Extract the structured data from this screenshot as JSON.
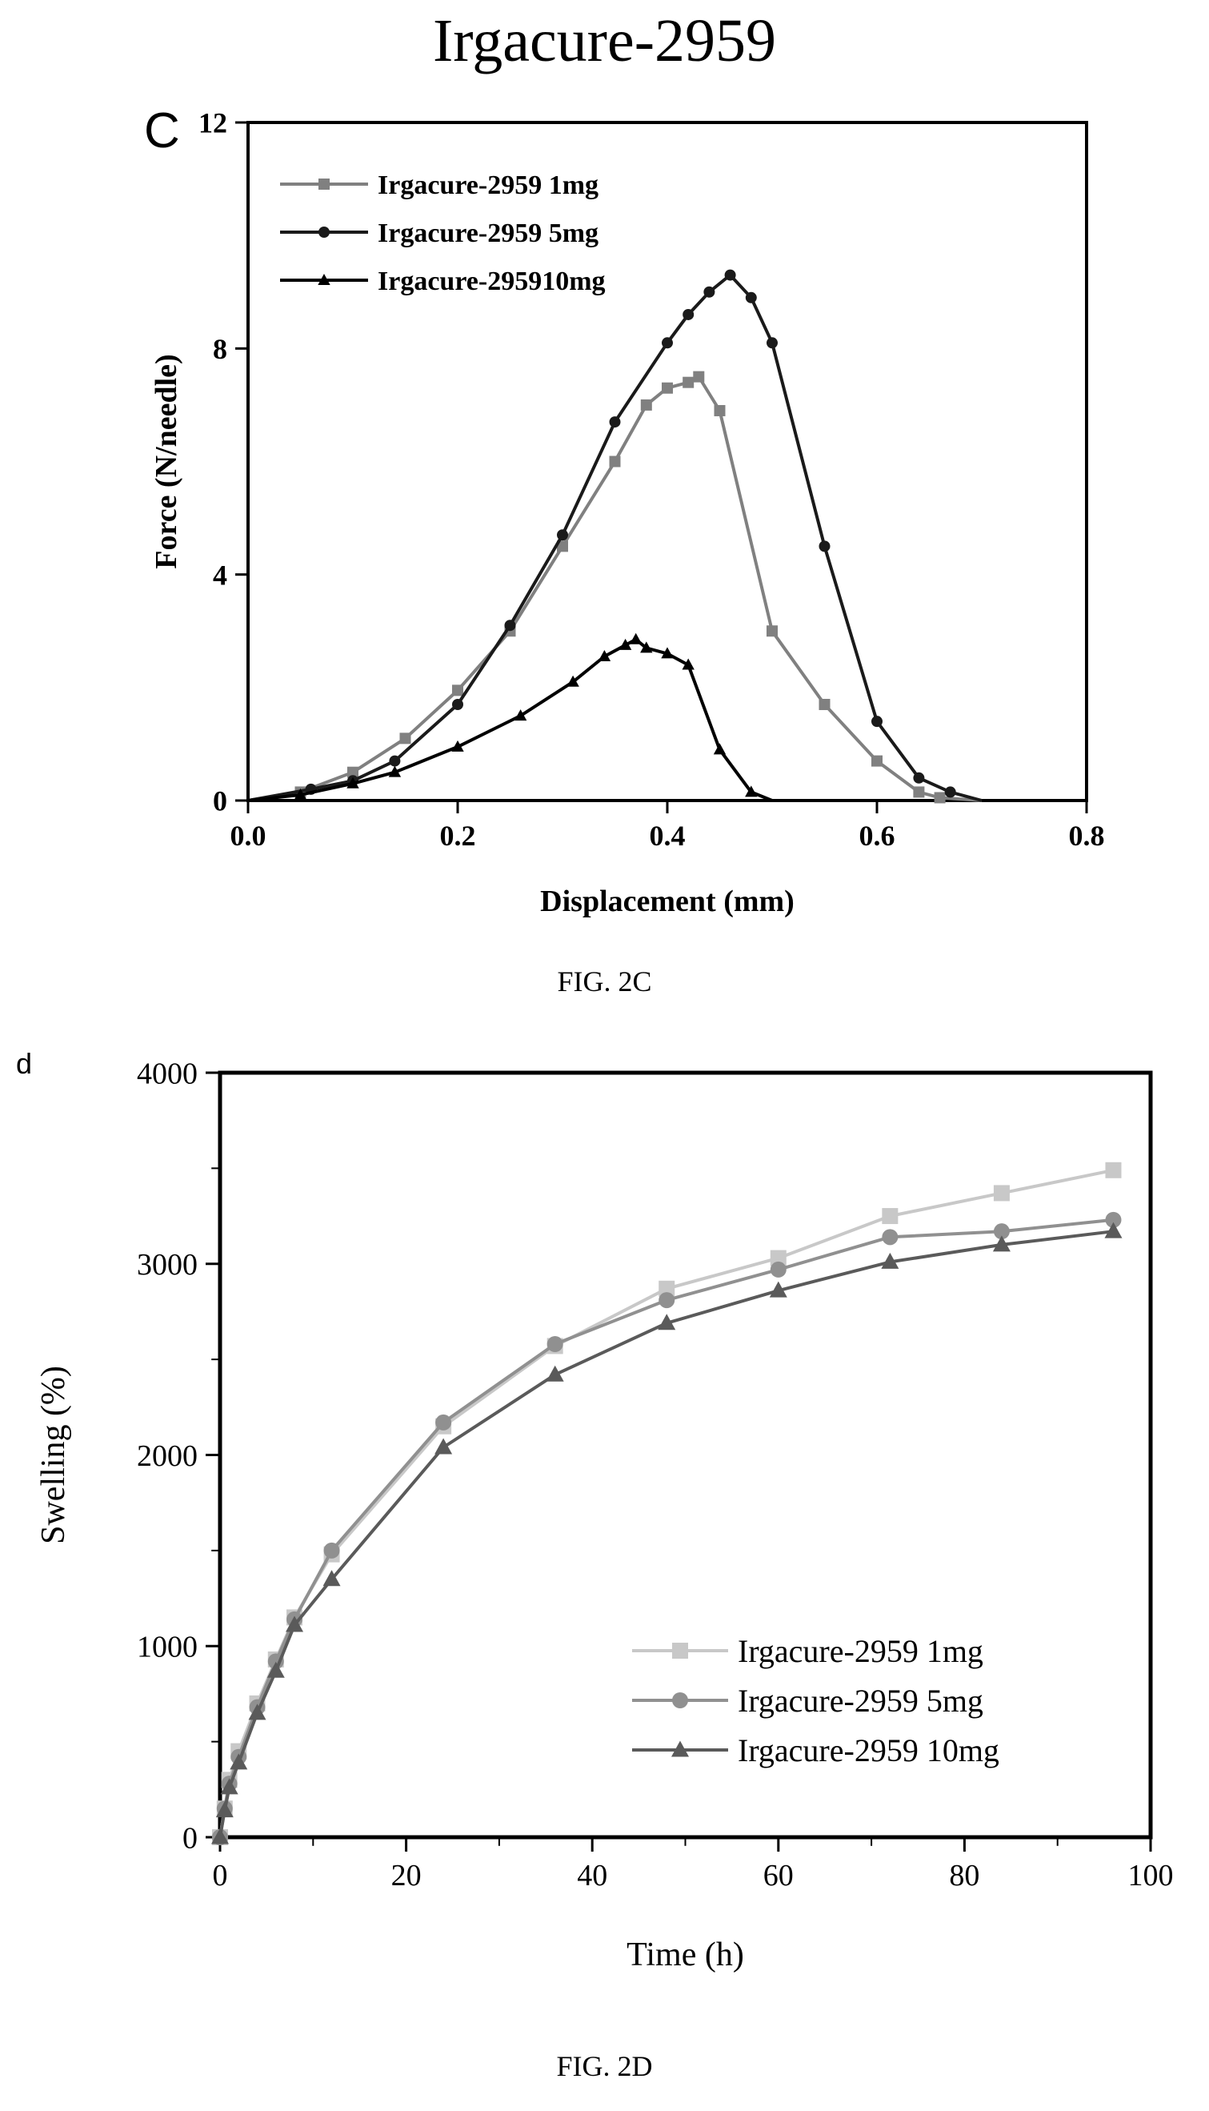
{
  "page_title": "Irgacure-2959",
  "colors": {
    "black": "#000000",
    "dark": "#1a1a1a",
    "mid": "#808080",
    "light": "#b0b0b0",
    "lighter": "#c8c8c8"
  },
  "chart_data": [
    {
      "type": "line",
      "panel_label": "C",
      "caption": "FIG. 2C",
      "xlabel": "Displacement (mm)",
      "ylabel": "Force (N/needle)",
      "xlim": [
        0,
        0.8
      ],
      "ylim": [
        0,
        12
      ],
      "xticks": [
        "0.0",
        "0.2",
        "0.4",
        "0.6",
        "0.8"
      ],
      "yticks": [
        "0",
        "4",
        "8",
        "12"
      ],
      "grid": false,
      "legend_position": "top-left",
      "series": [
        {
          "name": "Irgacure-2959 1mg",
          "marker": "square",
          "color": "#808080",
          "x": [
            0,
            0.05,
            0.1,
            0.15,
            0.2,
            0.25,
            0.3,
            0.35,
            0.38,
            0.4,
            0.42,
            0.43,
            0.45,
            0.5,
            0.55,
            0.6,
            0.64,
            0.66,
            0.7
          ],
          "y": [
            0,
            0.15,
            0.5,
            1.1,
            1.95,
            3.0,
            4.5,
            6.0,
            7.0,
            7.3,
            7.4,
            7.5,
            6.9,
            3.0,
            1.7,
            0.7,
            0.15,
            0.05,
            0
          ]
        },
        {
          "name": "Irgacure-2959 5mg",
          "marker": "circle",
          "color": "#1a1a1a",
          "x": [
            0,
            0.06,
            0.1,
            0.14,
            0.2,
            0.25,
            0.3,
            0.35,
            0.4,
            0.42,
            0.44,
            0.46,
            0.48,
            0.5,
            0.55,
            0.6,
            0.64,
            0.67,
            0.7
          ],
          "y": [
            0,
            0.2,
            0.35,
            0.7,
            1.7,
            3.1,
            4.7,
            6.7,
            8.1,
            8.6,
            9.0,
            9.3,
            8.9,
            8.1,
            4.5,
            1.4,
            0.4,
            0.15,
            0
          ]
        },
        {
          "name": "Irgacure-295910mg",
          "marker": "triangle",
          "color": "#000000",
          "x": [
            0,
            0.05,
            0.1,
            0.14,
            0.2,
            0.26,
            0.31,
            0.34,
            0.36,
            0.37,
            0.38,
            0.4,
            0.42,
            0.45,
            0.48,
            0.5
          ],
          "y": [
            0,
            0.1,
            0.3,
            0.5,
            0.95,
            1.5,
            2.1,
            2.55,
            2.75,
            2.85,
            2.7,
            2.6,
            2.4,
            0.9,
            0.15,
            0
          ]
        }
      ]
    },
    {
      "type": "line",
      "panel_label": "d",
      "caption": "FIG. 2D",
      "xlabel": "Time (h)",
      "ylabel": "Swelling (%)",
      "xlim": [
        0,
        100
      ],
      "ylim": [
        0,
        4000
      ],
      "xticks": [
        "0",
        "20",
        "40",
        "60",
        "80",
        "100"
      ],
      "yticks": [
        "0",
        "1000",
        "2000",
        "3000",
        "4000"
      ],
      "grid": false,
      "legend_position": "bottom-right",
      "series": [
        {
          "name": "Irgacure-2959 1mg",
          "marker": "square",
          "color": "#c8c8c8",
          "x": [
            0,
            0.5,
            1,
            2,
            4,
            6,
            8,
            12,
            24,
            36,
            48,
            60,
            72,
            84,
            96
          ],
          "y": [
            0,
            150,
            300,
            450,
            700,
            930,
            1150,
            1480,
            2150,
            2570,
            2870,
            3030,
            3250,
            3370,
            3490
          ]
        },
        {
          "name": "Irgacure-2959 5mg",
          "marker": "circle",
          "color": "#909090",
          "x": [
            0,
            0.5,
            1,
            2,
            4,
            6,
            8,
            12,
            24,
            36,
            48,
            60,
            72,
            84,
            96
          ],
          "y": [
            0,
            150,
            280,
            420,
            680,
            920,
            1140,
            1500,
            2170,
            2580,
            2810,
            2970,
            3140,
            3170,
            3230
          ]
        },
        {
          "name": "Irgacure-2959 10mg",
          "marker": "triangle",
          "color": "#5a5a5a",
          "x": [
            0,
            0.5,
            1,
            2,
            4,
            6,
            8,
            12,
            24,
            36,
            48,
            60,
            72,
            84,
            96
          ],
          "y": [
            0,
            140,
            260,
            390,
            650,
            870,
            1110,
            1350,
            2040,
            2420,
            2690,
            2860,
            3010,
            3100,
            3170
          ]
        }
      ]
    }
  ]
}
